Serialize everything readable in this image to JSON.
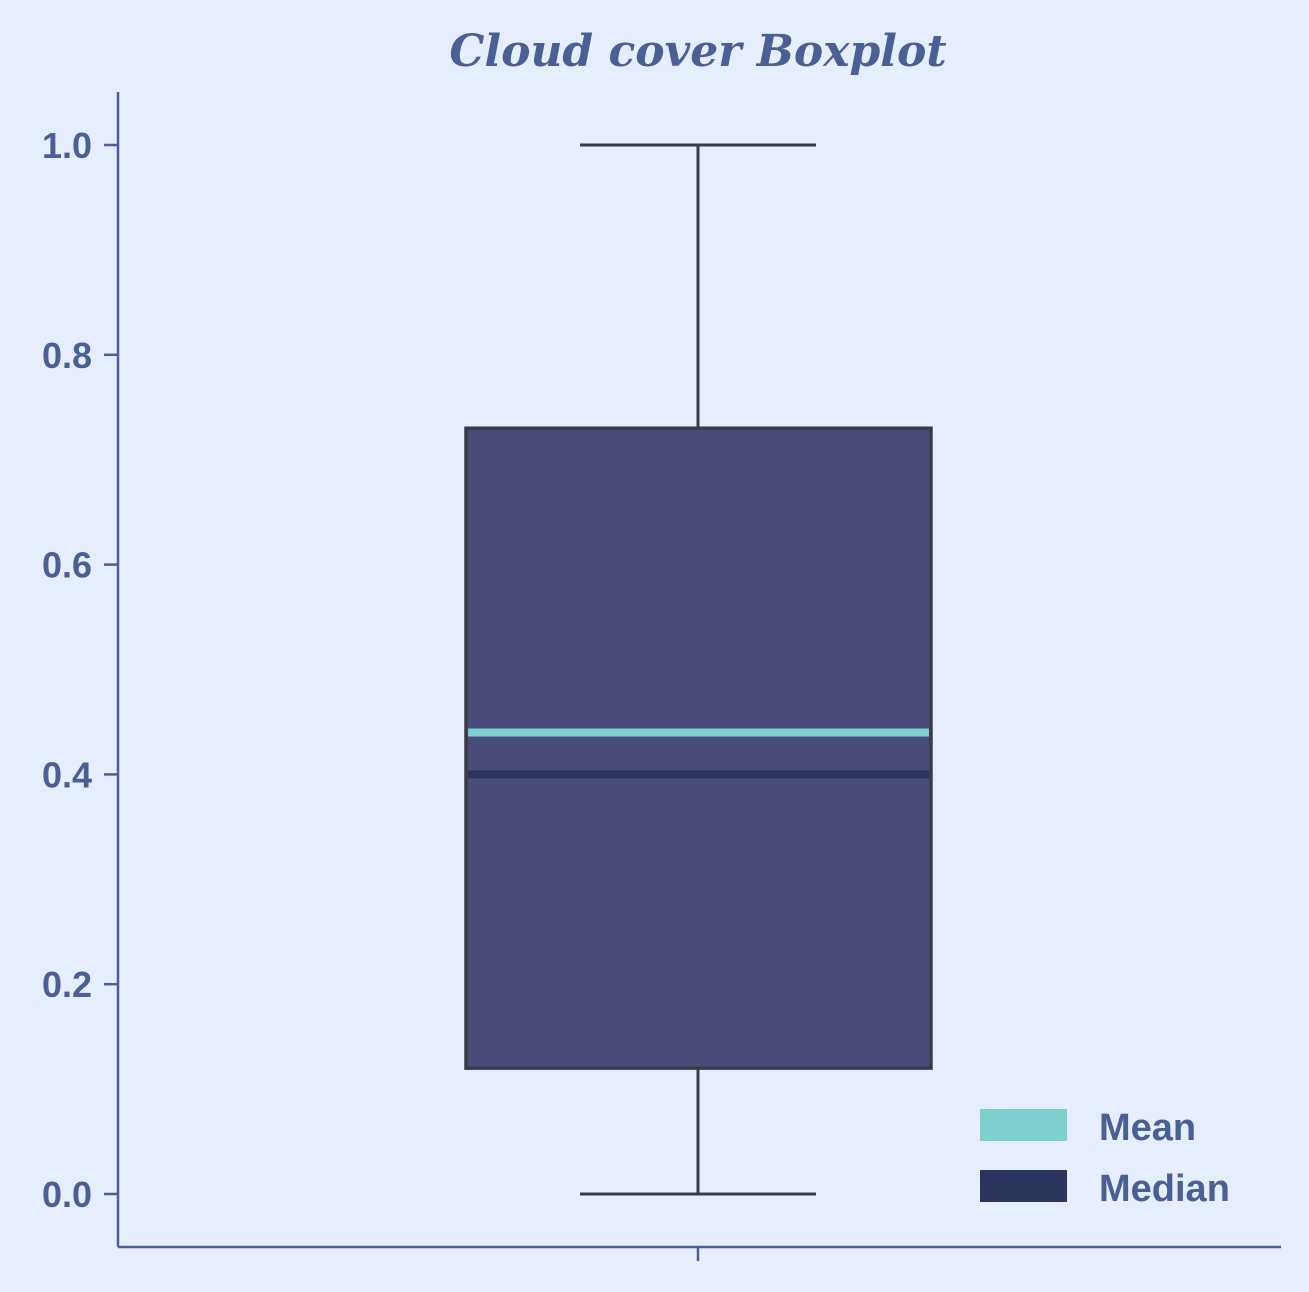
{
  "chart_data": {
    "type": "boxplot",
    "title": "Cloud cover Boxplot",
    "xlabel": "",
    "ylabel": "",
    "ylim": [
      -0.05,
      1.05
    ],
    "yticks": [
      0.0,
      0.2,
      0.4,
      0.6,
      0.8,
      1.0
    ],
    "ytick_labels": [
      "0.0",
      "0.2",
      "0.4",
      "0.6",
      "0.8",
      "1.0"
    ],
    "grid": false,
    "legend_position": "bottom-right",
    "box": {
      "whisker_low": 0.0,
      "q1": 0.12,
      "median": 0.4,
      "mean": 0.44,
      "q3": 0.73,
      "whisker_high": 1.0
    },
    "legend": [
      {
        "label": "Mean",
        "color": "#7ecfcd"
      },
      {
        "label": "Median",
        "color": "#2b345c"
      }
    ],
    "colors": {
      "background": "#e6edfd",
      "axis": "#4a5f94",
      "box_fill": "#4a4c7c",
      "box_edge": "#3a3b46",
      "mean_line": "#7ecfcd",
      "median_line": "#2b345c"
    }
  }
}
